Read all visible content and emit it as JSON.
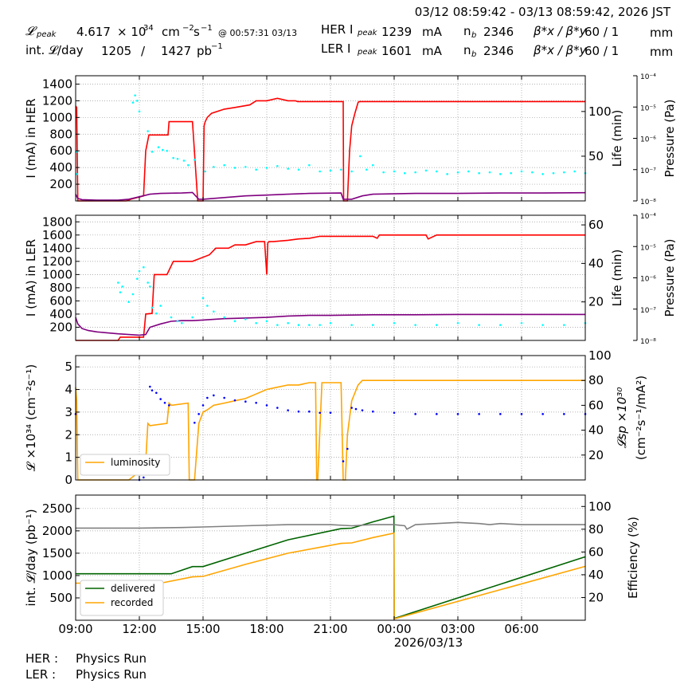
{
  "header": {
    "daterange": "03/12 08:59:42 - 03/13 08:59:42, 2026 JST",
    "lpeak_label": "𝓛",
    "lpeak_sub": "peak",
    "lpeak_value": "4.617",
    "lpeak_times": "× 10",
    "lpeak_exp": "34",
    "lpeak_unit_a": "cm",
    "lpeak_unit_exp_a": "−2",
    "lpeak_unit_b": "s",
    "lpeak_unit_exp_b": "−1",
    "lpeak_time": "@ 00:57:31 03/13",
    "intl_label": "int. 𝓛/day",
    "intl_value1": "1205",
    "intl_slash": "/",
    "intl_value2": "1427",
    "intl_unit": "pb",
    "intl_unit_exp": "−1",
    "her_label": "HER I",
    "her_sub": "peak",
    "her_value": "1239",
    "ler_label": "LER I",
    "ler_sub": "peak",
    "ler_value": "1601",
    "unit_ma": "mA",
    "nb_label": "n",
    "nb_sub": "b",
    "her_nb": "2346",
    "ler_nb": "2346",
    "beta_label": "β*x / β*y",
    "her_beta": "60    / 1",
    "ler_beta": "60    / 1",
    "unit_mm": "mm"
  },
  "footer": {
    "her_label": "HER :",
    "her_status": "Physics Run",
    "ler_label": "LER :",
    "ler_status": "Physics Run"
  },
  "xaxis": {
    "ticks": [
      "09:00",
      "12:00",
      "15:00",
      "18:00",
      "21:00",
      "00:00",
      "03:00",
      "06:00"
    ],
    "date_label": "2026/03/13"
  },
  "chart_data": [
    {
      "type": "line",
      "title": "",
      "ylabel": "I (mA) in HER",
      "ylabel_right": "Life (min)",
      "ylabel_pressure": "Pressure (Pa)",
      "ylim": [
        0,
        1500
      ],
      "yticks": [
        200,
        400,
        600,
        800,
        1000,
        1200,
        1400
      ],
      "ylim_right": [
        0,
        140
      ],
      "yticks_right": [
        50,
        100
      ],
      "pressure_ticks": [
        "10⁻⁴",
        "10⁻⁵",
        "10⁻⁶",
        "10⁻⁷",
        "10⁻⁸"
      ],
      "x_hours": [
        0,
        24
      ],
      "grid": true,
      "series": [
        {
          "color": "#ff0000",
          "x": [
            0,
            0.02,
            0.05,
            0.1,
            2.4,
            2.6,
            3.2,
            3.3,
            3.45,
            4.35,
            4.4,
            5.5,
            5.75,
            5.95,
            6.0,
            6.05,
            6.1,
            6.2,
            6.4,
            7.0,
            7.5,
            8.2,
            8.5,
            9.0,
            9.5,
            10.0,
            10.35,
            10.45,
            12.55,
            12.6,
            12.62,
            12.65,
            12.8,
            12.9,
            13.0,
            13.15,
            13.3,
            13.35,
            13.4,
            24.0
          ],
          "y": [
            1120,
            1130,
            1120,
            0,
            0,
            20,
            60,
            600,
            790,
            790,
            950,
            950,
            0,
            0,
            0,
            900,
            950,
            1000,
            1050,
            1100,
            1120,
            1150,
            1200,
            1200,
            1230,
            1200,
            1200,
            1190,
            1190,
            1190,
            0,
            0,
            0,
            600,
            900,
            1050,
            1180,
            1190,
            1190,
            1190
          ]
        },
        {
          "color": "#800080",
          "x": [
            0,
            0.1,
            0.3,
            1.0,
            2.0,
            2.5,
            3.0,
            3.5,
            4.0,
            5.0,
            5.5,
            5.8,
            6.0,
            7.0,
            8.0,
            9.0,
            10.0,
            11.0,
            12.5,
            12.6,
            13.0,
            13.5,
            14.0,
            16.0,
            18.0,
            20.0,
            22.0,
            24.0
          ],
          "y": [
            80,
            30,
            15,
            10,
            10,
            20,
            50,
            80,
            90,
            95,
            100,
            20,
            20,
            40,
            60,
            70,
            80,
            90,
            95,
            20,
            20,
            60,
            80,
            90,
            90,
            95,
            95,
            98
          ]
        },
        {
          "color": "#00ffff",
          "style": "dots",
          "x": [
            0.03,
            0.06,
            2.7,
            2.8,
            2.9,
            3.0,
            3.4,
            3.6,
            3.9,
            4.1,
            4.3,
            4.6,
            4.8,
            5.1,
            5.3,
            5.6,
            6.1,
            6.5,
            7.0,
            7.5,
            8.0,
            8.5,
            9.0,
            9.5,
            10.0,
            10.5,
            11.0,
            11.5,
            12.0,
            12.5,
            13.0,
            13.4,
            13.7,
            14.0,
            14.5,
            15.0,
            15.5,
            16.0,
            16.5,
            17.0,
            17.5,
            18.0,
            18.5,
            19.0,
            19.5,
            20.0,
            20.5,
            21.0,
            21.5,
            22.0,
            22.5,
            23.0,
            23.5,
            24.0
          ],
          "y": [
            55,
            30,
            110,
            118,
            112,
            100,
            78,
            55,
            60,
            57,
            56,
            48,
            47,
            45,
            40,
            46,
            33,
            38,
            40,
            37,
            38,
            35,
            37,
            39,
            36,
            35,
            40,
            33,
            34,
            35,
            33,
            50,
            35,
            40,
            32,
            33,
            31,
            32,
            34,
            33,
            30,
            32,
            33,
            31,
            32,
            30,
            31,
            33,
            32,
            30,
            31,
            32,
            33,
            31
          ]
        }
      ]
    },
    {
      "type": "line",
      "title": "",
      "ylabel": "I (mA) in LER",
      "ylabel_right": "Life (min)",
      "ylabel_pressure": "Pressure (Pa)",
      "ylim": [
        0,
        1900
      ],
      "yticks": [
        200,
        400,
        600,
        800,
        1000,
        1200,
        1400,
        1600,
        1800
      ],
      "ylim_right": [
        0,
        65
      ],
      "yticks_right": [
        20,
        40,
        60
      ],
      "pressure_ticks": [
        "10⁻⁴",
        "10⁻⁵",
        "10⁻⁶",
        "10⁻⁷",
        "10⁻⁸"
      ],
      "x_hours": [
        0,
        24
      ],
      "grid": true,
      "series": [
        {
          "color": "#ff0000",
          "x": [
            0,
            1.0,
            2.0,
            2.1,
            3.2,
            3.3,
            3.6,
            3.7,
            3.8,
            4.3,
            4.6,
            5.2,
            5.5,
            6.3,
            6.6,
            7.2,
            7.5,
            8.0,
            8.5,
            8.9,
            9.0,
            9.05,
            9.1,
            9.3,
            10.0,
            10.5,
            11.0,
            11.5,
            12.0,
            13.0,
            14.0,
            14.2,
            14.3,
            15.0,
            16.0,
            16.5,
            16.6,
            17.0,
            18.0,
            19.0,
            20.0,
            21.0,
            22.0,
            23.0,
            24.0
          ],
          "y": [
            0,
            0,
            0,
            50,
            50,
            400,
            410,
            1000,
            1000,
            1000,
            1200,
            1200,
            1200,
            1300,
            1400,
            1400,
            1450,
            1450,
            1500,
            1500,
            1000,
            1480,
            1500,
            1500,
            1520,
            1540,
            1550,
            1580,
            1580,
            1580,
            1580,
            1550,
            1600,
            1600,
            1600,
            1600,
            1540,
            1600,
            1600,
            1600,
            1600,
            1600,
            1600,
            1600,
            1600
          ]
        },
        {
          "color": "#800080",
          "x": [
            0,
            0.1,
            0.3,
            0.6,
            1.0,
            2.0,
            3.0,
            3.3,
            3.5,
            4.0,
            4.5,
            5.0,
            5.5,
            6.0,
            6.5,
            7.0,
            8.0,
            9.0,
            10.0,
            11.0,
            12.0,
            14.0,
            16.0,
            18.0,
            20.0,
            22.0,
            24.0
          ],
          "y": [
            350,
            250,
            180,
            150,
            130,
            100,
            80,
            90,
            200,
            250,
            290,
            300,
            300,
            310,
            320,
            330,
            340,
            350,
            370,
            380,
            380,
            390,
            390,
            395,
            395,
            395,
            395
          ]
        },
        {
          "color": "#00ffff",
          "style": "dots",
          "x": [
            2.0,
            2.1,
            2.2,
            2.5,
            2.7,
            2.9,
            3.0,
            3.2,
            3.4,
            3.5,
            3.6,
            3.8,
            4.0,
            4.5,
            4.8,
            5.0,
            5.5,
            6.0,
            6.2,
            6.5,
            7.0,
            7.5,
            8.0,
            8.5,
            9.0,
            9.5,
            10.0,
            10.5,
            11.0,
            11.5,
            12.0,
            13.0,
            14.0,
            15.0,
            16.0,
            17.0,
            18.0,
            19.0,
            20.0,
            21.0,
            22.0,
            23.0,
            24.0
          ],
          "y": [
            30,
            25,
            28,
            20,
            24,
            32,
            36,
            38,
            30,
            28,
            17,
            14,
            18,
            12,
            10,
            9,
            12,
            22,
            18,
            15,
            12,
            10,
            11,
            9,
            10,
            8,
            9,
            8,
            8,
            8,
            9,
            8,
            8,
            9,
            8,
            8,
            9,
            8,
            8,
            9,
            8,
            8,
            9
          ]
        }
      ]
    },
    {
      "type": "line",
      "title": "",
      "ylabel": "𝓛 ×10³⁴ (cm⁻²s⁻¹)",
      "ylabel_right_a": "𝓛sp ×10³⁰",
      "ylabel_right_b": "(cm⁻²s⁻¹/mA²)",
      "ylim": [
        0,
        5.5
      ],
      "yticks": [
        0,
        1,
        2,
        3,
        4,
        5
      ],
      "ylim_right": [
        0,
        100
      ],
      "yticks_right": [
        20,
        40,
        60,
        80,
        100
      ],
      "x_hours": [
        0,
        24
      ],
      "grid": true,
      "legend": {
        "location": "lower-left",
        "entries": [
          "luminosity"
        ]
      },
      "series": [
        {
          "name": "luminosity",
          "color": "#ffa500",
          "x": [
            0,
            0.05,
            0.1,
            1.0,
            2.5,
            3.2,
            3.3,
            3.4,
            3.5,
            4.3,
            4.4,
            4.5,
            5.3,
            5.35,
            5.4,
            5.6,
            5.8,
            6.0,
            6.2,
            6.5,
            7.0,
            7.5,
            8.0,
            8.5,
            9.0,
            9.5,
            10.0,
            10.5,
            11.0,
            11.3,
            11.35,
            11.4,
            11.6,
            12.5,
            12.6,
            12.7,
            12.8,
            13.0,
            13.3,
            13.5,
            14.0,
            15.0,
            16.0,
            17.0,
            18.0,
            19.0,
            20.0,
            21.0,
            22.0,
            23.0,
            24.0
          ],
          "y": [
            4.1,
            3.5,
            0,
            0,
            0,
            0.5,
            0.8,
            2.5,
            2.4,
            2.5,
            3.4,
            3.3,
            3.4,
            0,
            0,
            0,
            2.5,
            3.0,
            3.1,
            3.3,
            3.4,
            3.5,
            3.6,
            3.8,
            4.0,
            4.1,
            4.2,
            4.2,
            4.3,
            4.3,
            0,
            0,
            4.3,
            4.3,
            0,
            0,
            2.0,
            3.5,
            4.2,
            4.4,
            4.4,
            4.4,
            4.4,
            4.4,
            4.4,
            4.4,
            4.4,
            4.4,
            4.4,
            4.4,
            4.4
          ]
        },
        {
          "color": "#0000ff",
          "style": "dots",
          "x": [
            0,
            3.0,
            3.2,
            3.4,
            3.5,
            3.6,
            3.8,
            4.0,
            4.2,
            4.4,
            5.6,
            5.8,
            6.0,
            6.2,
            6.5,
            7.0,
            7.5,
            8.0,
            8.5,
            9.0,
            9.5,
            10.0,
            10.5,
            11.0,
            11.5,
            12.0,
            12.6,
            12.8,
            13.0,
            13.2,
            13.5,
            14.0,
            15.0,
            16.0,
            17.0,
            18.0,
            19.0,
            20.0,
            21.0,
            22.0,
            23.0,
            24.0
          ],
          "y": [
            53,
            0,
            2,
            14,
            75,
            72,
            70,
            65,
            62,
            60,
            46,
            53,
            60,
            66,
            68,
            66,
            64,
            63,
            62,
            60,
            58,
            56,
            55,
            55,
            54,
            54,
            15,
            25,
            58,
            57,
            56,
            55,
            54,
            53,
            53,
            53,
            53,
            53,
            53,
            53,
            53,
            53
          ]
        }
      ]
    },
    {
      "type": "line",
      "title": "",
      "ylabel": "int. 𝓛/day (pb⁻¹)",
      "ylabel_right": "Efficiency (%)",
      "ylim": [
        0,
        2800
      ],
      "yticks": [
        500,
        1000,
        1500,
        2000,
        2500
      ],
      "ylim_right": [
        0,
        110
      ],
      "yticks_right": [
        20,
        40,
        60,
        80,
        100
      ],
      "x_hours": [
        0,
        24
      ],
      "grid": true,
      "legend": {
        "location": "lower-left",
        "entries": [
          "delivered",
          "recorded"
        ]
      },
      "series": [
        {
          "name": "delivered",
          "color": "#006400",
          "x": [
            0,
            4.5,
            5.5,
            6.0,
            8.0,
            10.0,
            12.5,
            13.0,
            14.0,
            14.99,
            15.0,
            24.0
          ],
          "y": [
            1040,
            1040,
            1200,
            1200,
            1500,
            1800,
            2050,
            2060,
            2200,
            2330,
            40,
            1420
          ]
        },
        {
          "name": "recorded",
          "color": "#ffa500",
          "x": [
            0,
            4.0,
            5.5,
            6.0,
            8.0,
            10.0,
            12.5,
            13.0,
            14.0,
            14.99,
            15.0,
            24.0
          ],
          "y": [
            830,
            830,
            970,
            980,
            1250,
            1500,
            1720,
            1730,
            1850,
            1950,
            30,
            1205
          ]
        },
        {
          "color": "#808080",
          "x": [
            0,
            3.0,
            5.0,
            6.0,
            8.0,
            10.0,
            12.0,
            13.0,
            14.0,
            14.99,
            15.5,
            15.6,
            16.0,
            17.0,
            18.0,
            19.0,
            19.5,
            20.0,
            21.0,
            22.0,
            23.0,
            24.0
          ],
          "y": [
            81,
            81,
            81.5,
            82,
            83,
            84,
            84,
            83,
            84,
            84,
            83,
            80,
            84,
            85,
            86,
            85,
            84,
            85,
            84,
            84,
            84,
            84
          ]
        }
      ]
    }
  ]
}
